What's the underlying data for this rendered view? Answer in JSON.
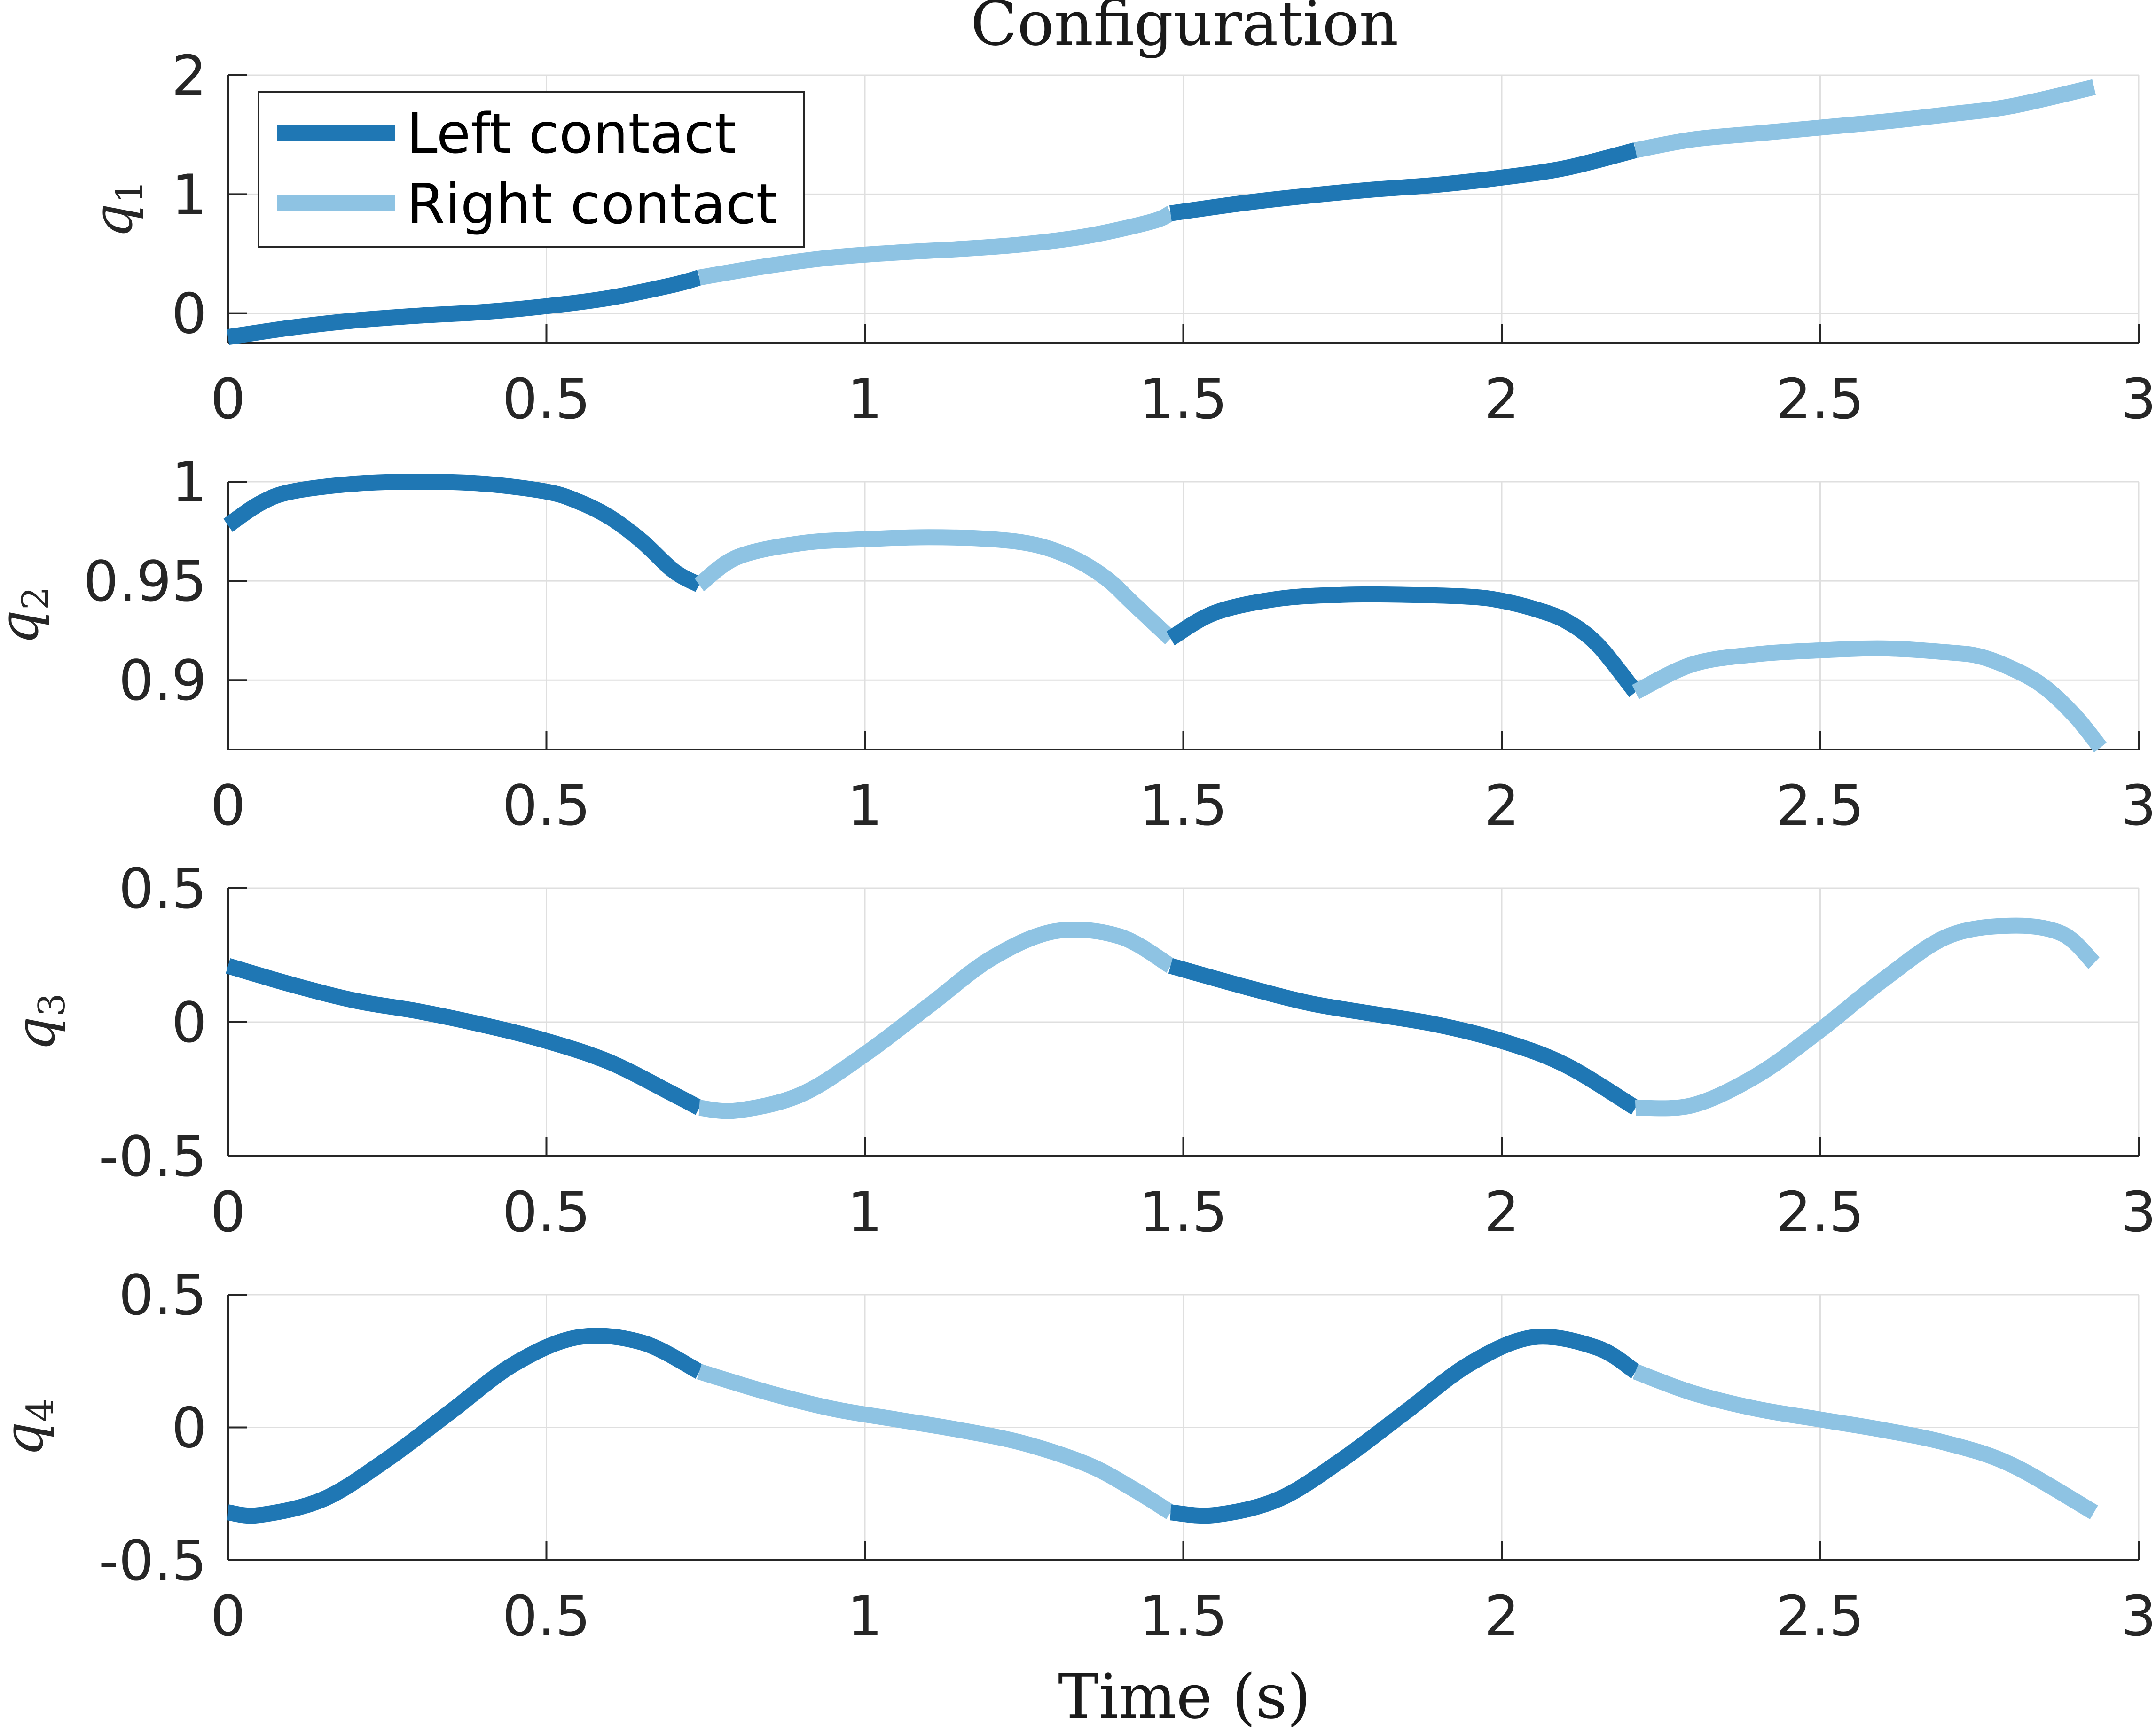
{
  "chart_data": {
    "type": "line",
    "title": "Configuration",
    "xlabel": "Time (s)",
    "xlim": [
      0,
      3
    ],
    "x_ticks": [
      "0",
      "0.5",
      "1",
      "1.5",
      "2",
      "2.5",
      "3"
    ],
    "legend": {
      "location": "top-left of first subplot",
      "entries": [
        {
          "label": "Left contact",
          "color": "#1f77b4"
        },
        {
          "label": "Right contact",
          "color": "#8ec3e3"
        }
      ]
    },
    "colors": {
      "left": "#1f77b4",
      "right": "#8ec3e3"
    },
    "grid": true,
    "subplots": [
      {
        "ylabel_base": "q",
        "ylabel_sub": "1",
        "ylim": [
          -0.25,
          2.0
        ],
        "y_ticks": [
          {
            "value": 0,
            "label": "0"
          },
          {
            "value": 1,
            "label": "1"
          },
          {
            "value": 2,
            "label": "2"
          }
        ],
        "segments": [
          {
            "contact": "left",
            "points": [
              [
                0,
                -0.2
              ],
              [
                0.1,
                -0.12
              ],
              [
                0.2,
                -0.06
              ],
              [
                0.3,
                -0.02
              ],
              [
                0.4,
                0.01
              ],
              [
                0.5,
                0.06
              ],
              [
                0.6,
                0.13
              ],
              [
                0.7,
                0.24
              ],
              [
                0.74,
                0.3
              ]
            ]
          },
          {
            "contact": "right",
            "points": [
              [
                0.74,
                0.3
              ],
              [
                0.85,
                0.4
              ],
              [
                0.95,
                0.47
              ],
              [
                1.05,
                0.51
              ],
              [
                1.15,
                0.54
              ],
              [
                1.25,
                0.58
              ],
              [
                1.35,
                0.65
              ],
              [
                1.45,
                0.77
              ],
              [
                1.48,
                0.84
              ]
            ]
          },
          {
            "contact": "left",
            "points": [
              [
                1.48,
                0.84
              ],
              [
                1.6,
                0.93
              ],
              [
                1.7,
                0.99
              ],
              [
                1.8,
                1.04
              ],
              [
                1.9,
                1.08
              ],
              [
                2.0,
                1.14
              ],
              [
                2.1,
                1.22
              ],
              [
                2.21,
                1.37
              ]
            ]
          },
          {
            "contact": "right",
            "points": [
              [
                2.21,
                1.37
              ],
              [
                2.3,
                1.46
              ],
              [
                2.4,
                1.51
              ],
              [
                2.5,
                1.56
              ],
              [
                2.6,
                1.61
              ],
              [
                2.7,
                1.67
              ],
              [
                2.8,
                1.74
              ],
              [
                2.93,
                1.9
              ]
            ]
          }
        ]
      },
      {
        "ylabel_base": "q",
        "ylabel_sub": "2",
        "ylim": [
          0.865,
          1.0
        ],
        "y_ticks": [
          {
            "value": 0.9,
            "label": "0.9"
          },
          {
            "value": 0.95,
            "label": "0.95"
          },
          {
            "value": 1.0,
            "label": "1"
          }
        ],
        "segments": [
          {
            "contact": "left",
            "points": [
              [
                0,
                0.978
              ],
              [
                0.05,
                0.989
              ],
              [
                0.1,
                0.995
              ],
              [
                0.2,
                0.999
              ],
              [
                0.3,
                1.0
              ],
              [
                0.4,
                0.999
              ],
              [
                0.5,
                0.995
              ],
              [
                0.55,
                0.99
              ],
              [
                0.6,
                0.982
              ],
              [
                0.65,
                0.97
              ],
              [
                0.7,
                0.955
              ],
              [
                0.74,
                0.948
              ]
            ]
          },
          {
            "contact": "right",
            "points": [
              [
                0.74,
                0.948
              ],
              [
                0.8,
                0.962
              ],
              [
                0.9,
                0.969
              ],
              [
                1.0,
                0.971
              ],
              [
                1.1,
                0.972
              ],
              [
                1.2,
                0.971
              ],
              [
                1.27,
                0.968
              ],
              [
                1.33,
                0.961
              ],
              [
                1.38,
                0.951
              ],
              [
                1.42,
                0.939
              ],
              [
                1.48,
                0.921
              ]
            ]
          },
          {
            "contact": "left",
            "points": [
              [
                1.48,
                0.921
              ],
              [
                1.55,
                0.934
              ],
              [
                1.65,
                0.941
              ],
              [
                1.75,
                0.943
              ],
              [
                1.85,
                0.943
              ],
              [
                1.95,
                0.942
              ],
              [
                2.0,
                0.94
              ],
              [
                2.05,
                0.936
              ],
              [
                2.1,
                0.93
              ],
              [
                2.15,
                0.918
              ],
              [
                2.21,
                0.894
              ]
            ]
          },
          {
            "contact": "right",
            "points": [
              [
                2.21,
                0.894
              ],
              [
                2.3,
                0.908
              ],
              [
                2.4,
                0.913
              ],
              [
                2.5,
                0.915
              ],
              [
                2.6,
                0.916
              ],
              [
                2.7,
                0.914
              ],
              [
                2.75,
                0.912
              ],
              [
                2.8,
                0.906
              ],
              [
                2.85,
                0.897
              ],
              [
                2.9,
                0.882
              ],
              [
                2.94,
                0.866
              ]
            ]
          }
        ]
      },
      {
        "ylabel_base": "q",
        "ylabel_sub": "3",
        "ylim": [
          -0.5,
          0.5
        ],
        "y_ticks": [
          {
            "value": -0.5,
            "label": "-0.5"
          },
          {
            "value": 0,
            "label": "0"
          },
          {
            "value": 0.5,
            "label": "0.5"
          }
        ],
        "segments": [
          {
            "contact": "left",
            "points": [
              [
                0,
                0.21
              ],
              [
                0.1,
                0.14
              ],
              [
                0.2,
                0.08
              ],
              [
                0.3,
                0.04
              ],
              [
                0.4,
                -0.01
              ],
              [
                0.5,
                -0.07
              ],
              [
                0.6,
                -0.15
              ],
              [
                0.7,
                -0.27
              ],
              [
                0.74,
                -0.32
              ]
            ]
          },
          {
            "contact": "right",
            "points": [
              [
                0.74,
                -0.32
              ],
              [
                0.8,
                -0.33
              ],
              [
                0.9,
                -0.27
              ],
              [
                1.0,
                -0.12
              ],
              [
                1.1,
                0.06
              ],
              [
                1.2,
                0.24
              ],
              [
                1.3,
                0.34
              ],
              [
                1.4,
                0.32
              ],
              [
                1.48,
                0.21
              ]
            ]
          },
          {
            "contact": "left",
            "points": [
              [
                1.48,
                0.21
              ],
              [
                1.6,
                0.13
              ],
              [
                1.7,
                0.07
              ],
              [
                1.8,
                0.03
              ],
              [
                1.9,
                -0.01
              ],
              [
                2.0,
                -0.07
              ],
              [
                2.1,
                -0.16
              ],
              [
                2.21,
                -0.32
              ]
            ]
          },
          {
            "contact": "right",
            "points": [
              [
                2.21,
                -0.32
              ],
              [
                2.3,
                -0.31
              ],
              [
                2.4,
                -0.2
              ],
              [
                2.5,
                -0.03
              ],
              [
                2.6,
                0.16
              ],
              [
                2.7,
                0.32
              ],
              [
                2.8,
                0.36
              ],
              [
                2.88,
                0.33
              ],
              [
                2.93,
                0.22
              ]
            ]
          }
        ]
      },
      {
        "ylabel_base": "q",
        "ylabel_sub": "4",
        "ylim": [
          -0.5,
          0.5
        ],
        "y_ticks": [
          {
            "value": -0.5,
            "label": "-0.5"
          },
          {
            "value": 0,
            "label": "0"
          },
          {
            "value": 0.5,
            "label": "0.5"
          }
        ],
        "segments": [
          {
            "contact": "left",
            "points": [
              [
                0,
                -0.32
              ],
              [
                0.05,
                -0.33
              ],
              [
                0.15,
                -0.27
              ],
              [
                0.25,
                -0.12
              ],
              [
                0.35,
                0.06
              ],
              [
                0.45,
                0.24
              ],
              [
                0.55,
                0.34
              ],
              [
                0.65,
                0.32
              ],
              [
                0.74,
                0.21
              ]
            ]
          },
          {
            "contact": "right",
            "points": [
              [
                0.74,
                0.21
              ],
              [
                0.85,
                0.13
              ],
              [
                0.95,
                0.07
              ],
              [
                1.05,
                0.03
              ],
              [
                1.15,
                -0.01
              ],
              [
                1.25,
                -0.06
              ],
              [
                1.35,
                -0.14
              ],
              [
                1.42,
                -0.23
              ],
              [
                1.48,
                -0.32
              ]
            ]
          },
          {
            "contact": "left",
            "points": [
              [
                1.48,
                -0.32
              ],
              [
                1.55,
                -0.33
              ],
              [
                1.65,
                -0.27
              ],
              [
                1.75,
                -0.12
              ],
              [
                1.85,
                0.06
              ],
              [
                1.95,
                0.24
              ],
              [
                2.05,
                0.34
              ],
              [
                2.15,
                0.3
              ],
              [
                2.21,
                0.21
              ]
            ]
          },
          {
            "contact": "right",
            "points": [
              [
                2.21,
                0.21
              ],
              [
                2.3,
                0.13
              ],
              [
                2.4,
                0.07
              ],
              [
                2.5,
                0.03
              ],
              [
                2.6,
                -0.01
              ],
              [
                2.7,
                -0.06
              ],
              [
                2.8,
                -0.14
              ],
              [
                2.93,
                -0.32
              ]
            ]
          }
        ]
      }
    ]
  }
}
